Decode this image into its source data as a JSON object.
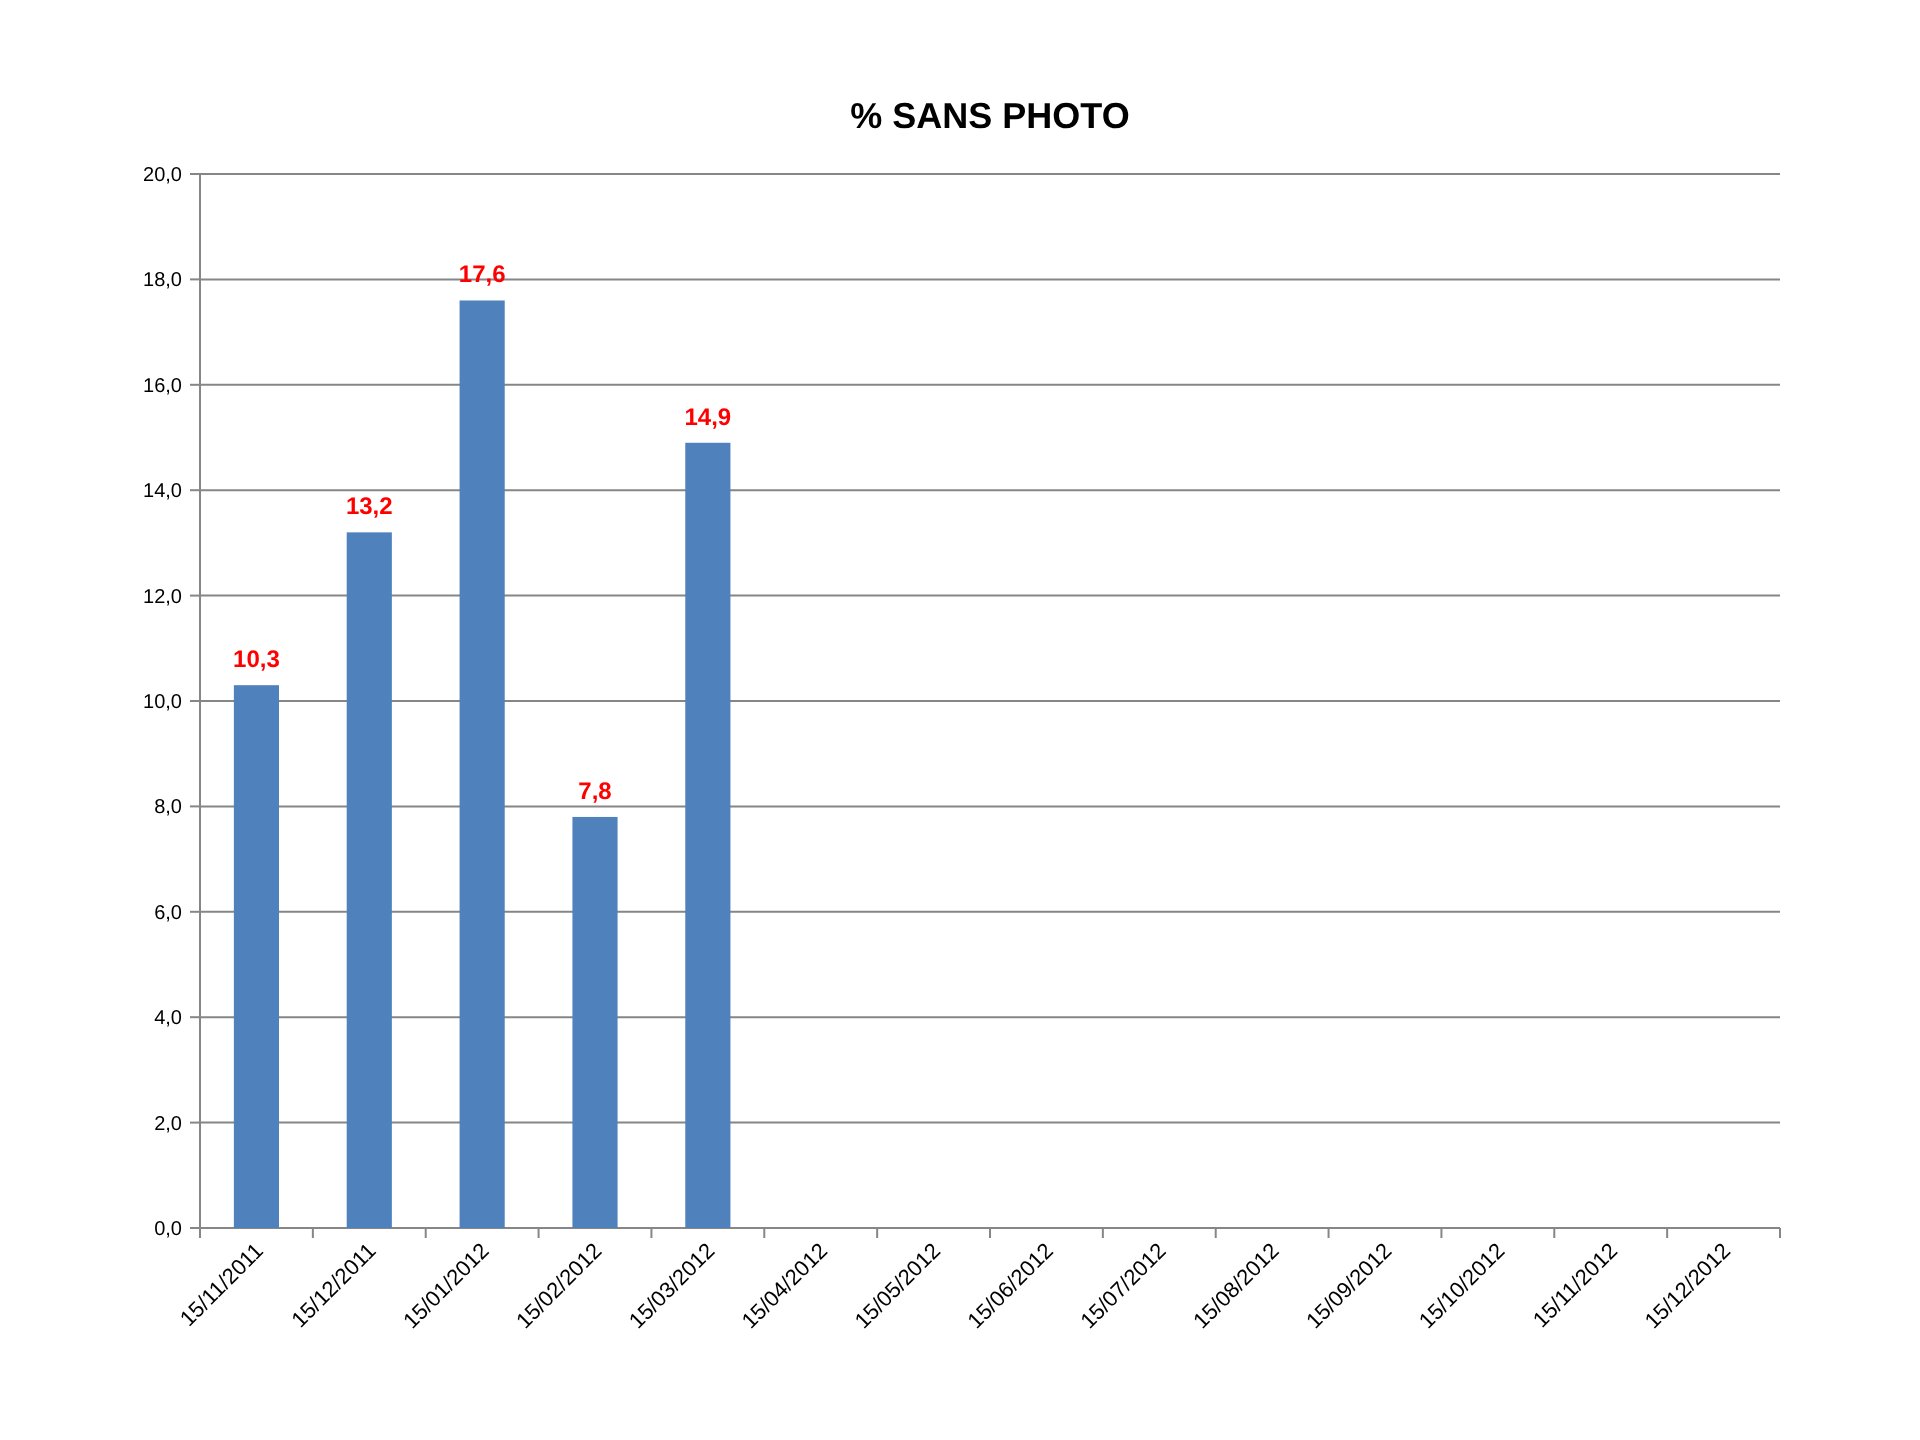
{
  "chart_data": {
    "type": "bar",
    "title": "% SANS PHOTO",
    "categories": [
      "15/11/2011",
      "15/12/2011",
      "15/01/2012",
      "15/02/2012",
      "15/03/2012",
      "15/04/2012",
      "15/05/2012",
      "15/06/2012",
      "15/07/2012",
      "15/08/2012",
      "15/09/2012",
      "15/10/2012",
      "15/11/2012",
      "15/12/2012"
    ],
    "values": [
      10.3,
      13.2,
      17.6,
      7.8,
      14.9,
      null,
      null,
      null,
      null,
      null,
      null,
      null,
      null,
      null
    ],
    "value_labels": [
      "10,3",
      "13,2",
      "17,6",
      "7,8",
      "14,9",
      null,
      null,
      null,
      null,
      null,
      null,
      null,
      null,
      null
    ],
    "color": "#4f81bd",
    "ylim": [
      0,
      20
    ],
    "yticks": [
      {
        "value": 0,
        "label": "0,0"
      },
      {
        "value": 2,
        "label": "2,0"
      },
      {
        "value": 4,
        "label": "4,0"
      },
      {
        "value": 6,
        "label": "6,0"
      },
      {
        "value": 8,
        "label": "8,0"
      },
      {
        "value": 10,
        "label": "10,0"
      },
      {
        "value": 12,
        "label": "12,0"
      },
      {
        "value": 14,
        "label": "14,0"
      },
      {
        "value": 16,
        "label": "16,0"
      },
      {
        "value": 18,
        "label": "18,0"
      },
      {
        "value": 20,
        "label": "20,0"
      }
    ],
    "grid": "y"
  }
}
